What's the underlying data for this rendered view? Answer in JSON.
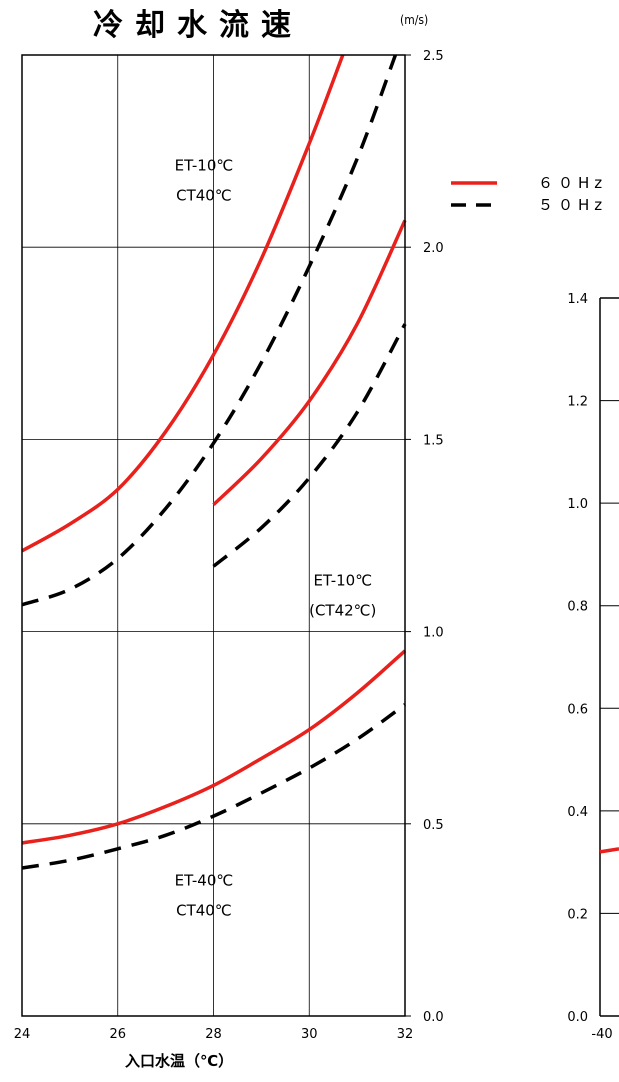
{
  "chart_data": [
    {
      "type": "line",
      "title": "冷却水流速",
      "ylabel": "(m/s)",
      "xlabel": "入口水温（℃）",
      "xlim": [
        24,
        32
      ],
      "ylim": [
        0.0,
        2.5
      ],
      "x_ticks": [
        "24",
        "26",
        "28",
        "30",
        "32"
      ],
      "y_ticks": [
        "0.0",
        "0.5",
        "1.0",
        "1.5",
        "2.0",
        "2.5"
      ],
      "grid": true,
      "legend_position": "right",
      "legend": [
        {
          "label": "６０Hz",
          "style": "solid",
          "color": "#e8211d"
        },
        {
          "label": "５０Hz",
          "style": "dashed",
          "color": "#000000"
        }
      ],
      "annotations": [
        {
          "lines": [
            "ET-10℃",
            "CT40℃"
          ],
          "x": 27.8,
          "y": 2.2
        },
        {
          "lines": [
            "ET-10℃",
            "(CT42℃)"
          ],
          "x": 30.7,
          "y": 1.12
        },
        {
          "lines": [
            "ET-40℃",
            "CT40℃"
          ],
          "x": 27.8,
          "y": 0.34
        }
      ],
      "series": [
        {
          "style": "solid",
          "color": "#e8211d",
          "x": [
            24,
            25,
            26,
            27,
            28,
            29,
            30,
            30.7
          ],
          "y": [
            1.21,
            1.28,
            1.37,
            1.52,
            1.72,
            1.97,
            2.27,
            2.5
          ]
        },
        {
          "style": "dashed",
          "color": "#000000",
          "x": [
            24,
            25,
            26,
            27,
            28,
            29,
            30,
            31,
            31.8
          ],
          "y": [
            1.07,
            1.11,
            1.19,
            1.32,
            1.49,
            1.7,
            1.95,
            2.23,
            2.5
          ]
        },
        {
          "style": "solid",
          "color": "#e8211d",
          "x": [
            28,
            29,
            30,
            31,
            32
          ],
          "y": [
            1.33,
            1.45,
            1.6,
            1.8,
            2.07
          ]
        },
        {
          "style": "dashed",
          "color": "#000000",
          "x": [
            28,
            29,
            30,
            31,
            32
          ],
          "y": [
            1.17,
            1.27,
            1.4,
            1.57,
            1.8
          ]
        },
        {
          "style": "solid",
          "color": "#e8211d",
          "x": [
            24,
            25,
            26,
            27,
            28,
            29,
            30,
            31,
            32
          ],
          "y": [
            0.45,
            0.47,
            0.5,
            0.545,
            0.6,
            0.67,
            0.745,
            0.84,
            0.95
          ]
        },
        {
          "style": "dashed",
          "color": "#000000",
          "x": [
            24,
            25,
            26,
            27,
            28,
            29,
            30,
            31,
            32
          ],
          "y": [
            0.385,
            0.405,
            0.435,
            0.47,
            0.52,
            0.58,
            0.645,
            0.72,
            0.81
          ]
        }
      ]
    },
    {
      "type": "line",
      "partial": true,
      "xlim_visible_start": -40,
      "ylim": [
        0.0,
        1.4
      ],
      "x_ticks": [
        "-40"
      ],
      "y_ticks": [
        "0.0",
        "0.2",
        "0.4",
        "0.6",
        "0.8",
        "1.0",
        "1.2",
        "1.4"
      ],
      "series": [
        {
          "style": "solid",
          "color": "#e8211d",
          "x": [
            -40,
            -39.5
          ],
          "y": [
            0.32,
            0.325
          ]
        }
      ]
    }
  ]
}
